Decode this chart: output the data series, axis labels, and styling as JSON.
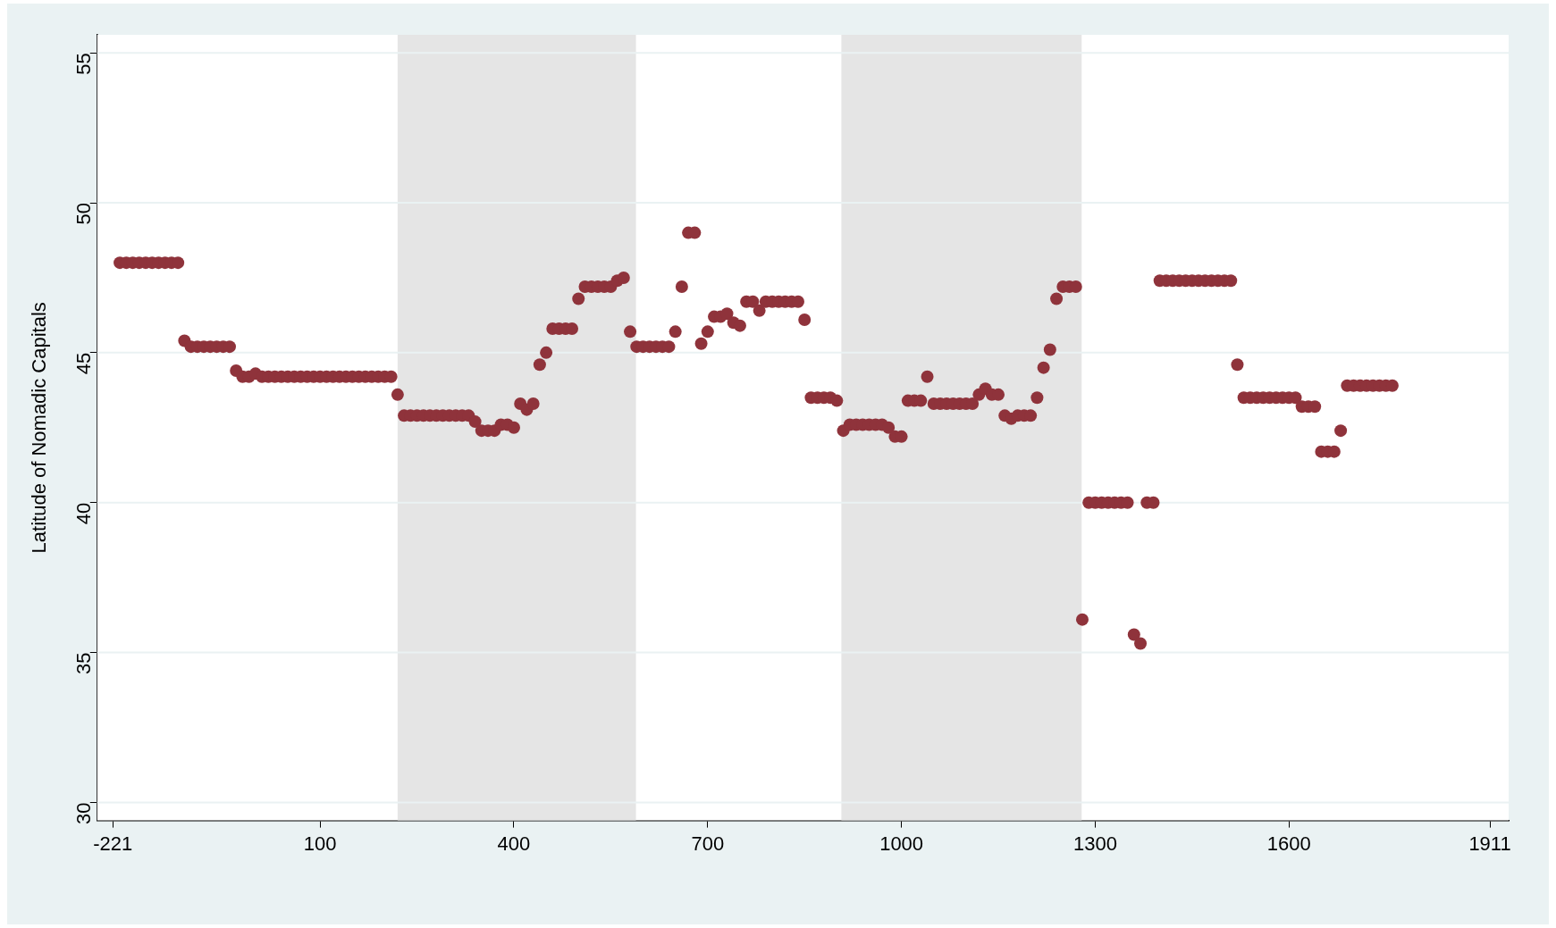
{
  "chart_data": {
    "type": "scatter",
    "ylabel": "Latitude of Nomadic Capitals",
    "x": [
      -210,
      -200,
      -190,
      -180,
      -170,
      -160,
      -150,
      -140,
      -130,
      -120,
      -110,
      -100,
      -90,
      -80,
      -70,
      -60,
      -50,
      -40,
      -30,
      -20,
      -10,
      0,
      10,
      20,
      30,
      40,
      50,
      60,
      70,
      80,
      90,
      100,
      110,
      120,
      130,
      140,
      150,
      160,
      170,
      180,
      190,
      200,
      210,
      220,
      230,
      240,
      250,
      260,
      270,
      280,
      290,
      300,
      310,
      320,
      330,
      340,
      350,
      360,
      370,
      380,
      390,
      400,
      410,
      420,
      430,
      440,
      450,
      460,
      470,
      480,
      490,
      500,
      510,
      520,
      530,
      540,
      550,
      560,
      570,
      580,
      590,
      600,
      610,
      620,
      630,
      640,
      650,
      660,
      670,
      680,
      690,
      700,
      710,
      720,
      730,
      740,
      750,
      760,
      770,
      780,
      790,
      800,
      810,
      820,
      830,
      840,
      850,
      860,
      870,
      880,
      890,
      900,
      910,
      920,
      930,
      940,
      950,
      960,
      970,
      980,
      990,
      1000,
      1010,
      1020,
      1030,
      1040,
      1050,
      1060,
      1070,
      1080,
      1090,
      1100,
      1110,
      1120,
      1130,
      1140,
      1150,
      1160,
      1170,
      1180,
      1190,
      1200,
      1210,
      1220,
      1230,
      1240,
      1250,
      1260,
      1270,
      1280,
      1290,
      1300,
      1310,
      1320,
      1330,
      1340,
      1350,
      1360,
      1370,
      1380,
      1390,
      1400,
      1410,
      1420,
      1430,
      1440,
      1450,
      1460,
      1470,
      1480,
      1490,
      1500,
      1510,
      1520,
      1530,
      1540,
      1550,
      1560,
      1570,
      1580,
      1590,
      1600,
      1610,
      1620,
      1630,
      1640,
      1650,
      1660,
      1670,
      1680,
      1690,
      1700,
      1710,
      1720,
      1730,
      1740,
      1750,
      1760
    ],
    "values": [
      48.0,
      48.0,
      48.0,
      48.0,
      48.0,
      48.0,
      48.0,
      48.0,
      48.0,
      48.0,
      45.4,
      45.2,
      45.2,
      45.2,
      45.2,
      45.2,
      45.2,
      45.2,
      44.4,
      44.2,
      44.2,
      44.3,
      44.2,
      44.2,
      44.2,
      44.2,
      44.2,
      44.2,
      44.2,
      44.2,
      44.2,
      44.2,
      44.2,
      44.2,
      44.2,
      44.2,
      44.2,
      44.2,
      44.2,
      44.2,
      44.2,
      44.2,
      44.2,
      43.6,
      42.9,
      42.9,
      42.9,
      42.9,
      42.9,
      42.9,
      42.9,
      42.9,
      42.9,
      42.9,
      42.9,
      42.7,
      42.4,
      42.4,
      42.4,
      42.6,
      42.6,
      42.5,
      43.3,
      43.1,
      43.3,
      44.6,
      45.0,
      45.8,
      45.8,
      45.8,
      45.8,
      46.8,
      47.2,
      47.2,
      47.2,
      47.2,
      47.2,
      47.4,
      47.5,
      45.7,
      45.2,
      45.2,
      45.2,
      45.2,
      45.2,
      45.2,
      45.7,
      47.2,
      49.0,
      49.0,
      45.3,
      45.7,
      46.2,
      46.2,
      46.3,
      46.0,
      45.9,
      46.7,
      46.7,
      46.4,
      46.7,
      46.7,
      46.7,
      46.7,
      46.7,
      46.7,
      46.1,
      43.5,
      43.5,
      43.5,
      43.5,
      43.4,
      42.4,
      42.6,
      42.6,
      42.6,
      42.6,
      42.6,
      42.6,
      42.5,
      42.2,
      42.2,
      43.4,
      43.4,
      43.4,
      44.2,
      43.3,
      43.3,
      43.3,
      43.3,
      43.3,
      43.3,
      43.3,
      43.6,
      43.8,
      43.6,
      43.6,
      42.9,
      42.8,
      42.9,
      42.9,
      42.9,
      43.5,
      44.5,
      45.1,
      46.8,
      47.2,
      47.2,
      47.2,
      36.1,
      40.0,
      40.0,
      40.0,
      40.0,
      40.0,
      40.0,
      40.0,
      35.6,
      35.3,
      40.0,
      40.0,
      47.4,
      47.4,
      47.4,
      47.4,
      47.4,
      47.4,
      47.4,
      47.4,
      47.4,
      47.4,
      47.4,
      47.4,
      44.6,
      43.5,
      43.5,
      43.5,
      43.5,
      43.5,
      43.5,
      43.5,
      43.5,
      43.5,
      43.2,
      43.2,
      43.2,
      41.7,
      41.7,
      41.7,
      42.4,
      43.9,
      43.9,
      43.9,
      43.9,
      43.9,
      43.9,
      43.9,
      43.9
    ],
    "color": "#8f333b",
    "marker": "circle",
    "xlim": [
      -245,
      1940
    ],
    "xticks": [
      -221,
      100,
      400,
      700,
      1000,
      1300,
      1600,
      1911
    ],
    "ylim": [
      29.4,
      55.6
    ],
    "yticks": [
      30,
      35,
      40,
      45,
      50,
      55
    ],
    "bands": [
      {
        "axis": "x",
        "from": 220,
        "to": 589,
        "color": "#e5e5e5"
      },
      {
        "axis": "x",
        "from": 907,
        "to": 1279,
        "color": "#e5e5e5"
      }
    ],
    "grid": "y",
    "legend": false
  }
}
